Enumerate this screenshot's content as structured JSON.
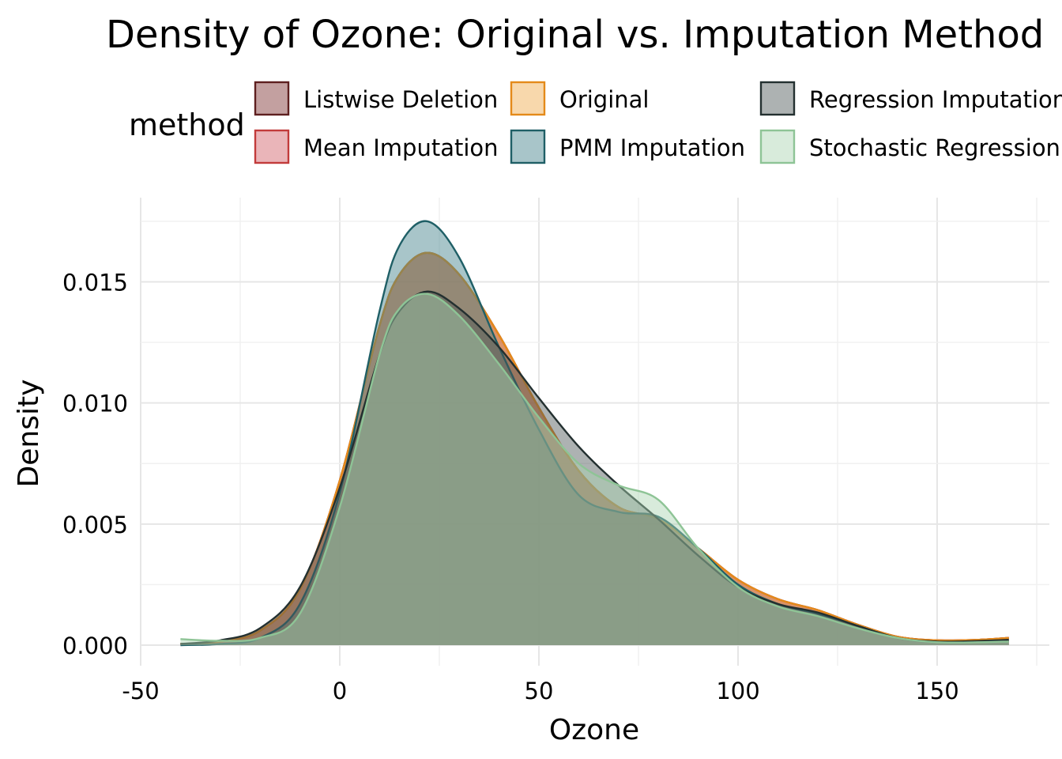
{
  "chart_data": {
    "type": "area",
    "title": "Density of Ozone: Original vs. Imputation Method",
    "xlabel": "Ozone",
    "ylabel": "Density",
    "xlim": [
      -50,
      175
    ],
    "ylim": [
      0,
      0.0183
    ],
    "x_ticks": [
      -50,
      0,
      50,
      100,
      150
    ],
    "x_tick_labels": [
      "-50",
      "0",
      "50",
      "100",
      "150"
    ],
    "y_ticks": [
      0,
      0.005,
      0.01,
      0.015
    ],
    "y_tick_labels": [
      "0.000",
      "0.005",
      "0.010",
      "0.015"
    ],
    "grid": true,
    "legend": {
      "title": "method",
      "position": "top"
    },
    "series": [
      {
        "name": "Listwise Deletion",
        "fill": "#7b2c2c",
        "line": "#5e1f1f",
        "x": [
          -40,
          -30,
          -20,
          -10,
          0,
          10,
          15,
          22,
          30,
          40,
          50,
          60,
          70,
          80,
          90,
          100,
          110,
          120,
          130,
          140,
          150,
          160,
          168
        ],
        "y": [
          5e-05,
          0.00015,
          0.0006,
          0.0023,
          0.0068,
          0.0132,
          0.0153,
          0.0162,
          0.0153,
          0.0128,
          0.0098,
          0.0072,
          0.0057,
          0.0052,
          0.004,
          0.0027,
          0.0019,
          0.00145,
          0.00085,
          0.00035,
          0.0002,
          0.00022,
          0.0003
        ]
      },
      {
        "name": "Mean Imputation",
        "fill": "#d05a63",
        "line": "#c23b3b",
        "x": [
          -40,
          -30,
          -20,
          -10,
          0,
          10,
          15,
          22,
          30,
          40,
          50,
          60,
          70,
          80,
          90,
          100,
          110,
          120,
          130,
          140,
          150,
          160,
          168
        ],
        "y": [
          5e-05,
          0.00015,
          0.0006,
          0.0023,
          0.0068,
          0.0132,
          0.0153,
          0.0162,
          0.0153,
          0.0128,
          0.0098,
          0.0072,
          0.0057,
          0.0052,
          0.004,
          0.0027,
          0.0019,
          0.00145,
          0.00085,
          0.00035,
          0.0002,
          0.00022,
          0.0003
        ]
      },
      {
        "name": "Original",
        "fill": "#f0a848",
        "line": "#e48a1a",
        "x": [
          -40,
          -30,
          -20,
          -10,
          0,
          10,
          15,
          22,
          30,
          40,
          50,
          60,
          70,
          80,
          90,
          100,
          110,
          120,
          130,
          140,
          150,
          160,
          168
        ],
        "y": [
          5e-05,
          0.00015,
          0.0006,
          0.0023,
          0.0068,
          0.0132,
          0.0153,
          0.0162,
          0.0153,
          0.0128,
          0.0098,
          0.0072,
          0.0057,
          0.0052,
          0.004,
          0.0027,
          0.0019,
          0.00145,
          0.00085,
          0.00035,
          0.0002,
          0.00022,
          0.0003
        ]
      },
      {
        "name": "PMM Imputation",
        "fill": "#3d7f88",
        "line": "#1f5f66",
        "x": [
          -40,
          -30,
          -20,
          -10,
          0,
          10,
          15,
          22,
          30,
          40,
          50,
          60,
          70,
          80,
          90,
          100,
          110,
          120,
          130,
          140,
          150,
          160,
          168
        ],
        "y": [
          0.0,
          5e-05,
          0.0003,
          0.0017,
          0.0063,
          0.0138,
          0.0165,
          0.0175,
          0.016,
          0.0123,
          0.0089,
          0.0062,
          0.0055,
          0.0053,
          0.004,
          0.0025,
          0.0017,
          0.0013,
          0.0008,
          0.0003,
          0.00012,
          0.00013,
          0.00018
        ]
      },
      {
        "name": "Regression Imputation",
        "fill": "#4a5454",
        "line": "#233030",
        "x": [
          -40,
          -30,
          -20,
          -10,
          0,
          10,
          15,
          22,
          30,
          40,
          50,
          60,
          70,
          80,
          90,
          100,
          110,
          120,
          130,
          140,
          150,
          160,
          168
        ],
        "y": [
          5e-05,
          0.0002,
          0.0007,
          0.0024,
          0.0065,
          0.012,
          0.0138,
          0.0146,
          0.0139,
          0.0123,
          0.0102,
          0.0082,
          0.0066,
          0.0052,
          0.0037,
          0.0024,
          0.0017,
          0.00135,
          0.0008,
          0.0003,
          0.00015,
          0.00017,
          0.00022
        ]
      },
      {
        "name": "Stochastic Regression",
        "fill": "#a8d2b0",
        "line": "#8ec496",
        "x": [
          -40,
          -30,
          -20,
          -10,
          0,
          10,
          15,
          22,
          30,
          40,
          50,
          60,
          70,
          80,
          90,
          100,
          110,
          120,
          130,
          140,
          150,
          160,
          168
        ],
        "y": [
          0.00025,
          0.00018,
          0.0003,
          0.0013,
          0.0057,
          0.012,
          0.0139,
          0.0145,
          0.0136,
          0.0116,
          0.0094,
          0.0075,
          0.0066,
          0.006,
          0.004,
          0.0024,
          0.0016,
          0.0012,
          0.0007,
          0.0003,
          0.00012,
          0.00012,
          0.00015
        ]
      }
    ]
  }
}
